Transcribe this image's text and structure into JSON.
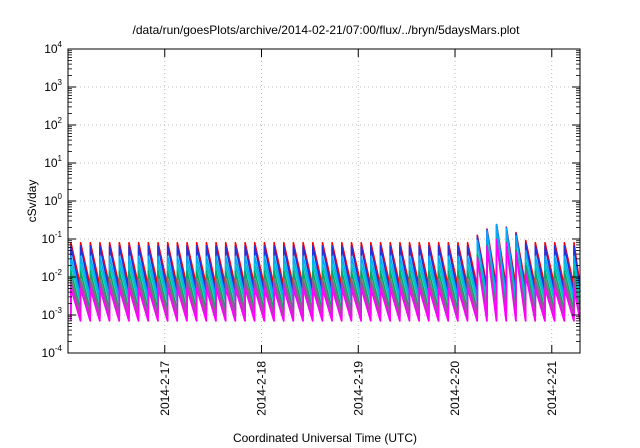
{
  "chart_data": {
    "type": "line",
    "title": "/data/run/goesPlots/archive/2014-02-21/07:00/flux/../bryn/5daysMars.plot",
    "xlabel": "Coordinated Universal Time (UTC)",
    "ylabel": "cSv/day",
    "yscale": "log",
    "ylim": [
      0.0001,
      10000
    ],
    "xlim": [
      "2014-02-16 00:00",
      "2014-02-21 07:00"
    ],
    "grid": true,
    "y_ticks": [
      {
        "base": "10",
        "exp": "-4"
      },
      {
        "base": "10",
        "exp": "-3"
      },
      {
        "base": "10",
        "exp": "-2"
      },
      {
        "base": "10",
        "exp": "-1"
      },
      {
        "base": "10",
        "exp": "0"
      },
      {
        "base": "10",
        "exp": "1"
      },
      {
        "base": "10",
        "exp": "2"
      },
      {
        "base": "10",
        "exp": "3"
      },
      {
        "base": "10",
        "exp": "4"
      }
    ],
    "x_ticks": [
      "2014-2-17",
      "2014-2-18",
      "2014-2-19",
      "2014-2-20",
      "2014-2-21"
    ],
    "x_tick_days": [
      1,
      2,
      3,
      4,
      5
    ],
    "sawtooth": {
      "pulses_per_day": 10,
      "start_day": 0.03,
      "end_day": 5.28,
      "spike_day": 4.45,
      "spike_peak": 0.25
    },
    "series": [
      {
        "color": "#ff0000",
        "peak": 0.08,
        "trough": 0.006
      },
      {
        "color": "#2233dd",
        "peak": 0.065,
        "trough": 0.004
      },
      {
        "color": "#00aaff",
        "peak": 0.035,
        "trough": 0.003
      },
      {
        "color": "#00c4c4",
        "peak": 0.022,
        "trough": 0.0022
      },
      {
        "color": "#00aa66",
        "peak": 0.014,
        "trough": 0.0014
      },
      {
        "color": "#777777",
        "peak": 0.009,
        "trough": 0.0011
      },
      {
        "color": "#aa44aa",
        "peak": 0.007,
        "trough": 0.0009
      },
      {
        "color": "#ff00ff",
        "peak": 0.005,
        "trough": 0.0007
      }
    ]
  }
}
